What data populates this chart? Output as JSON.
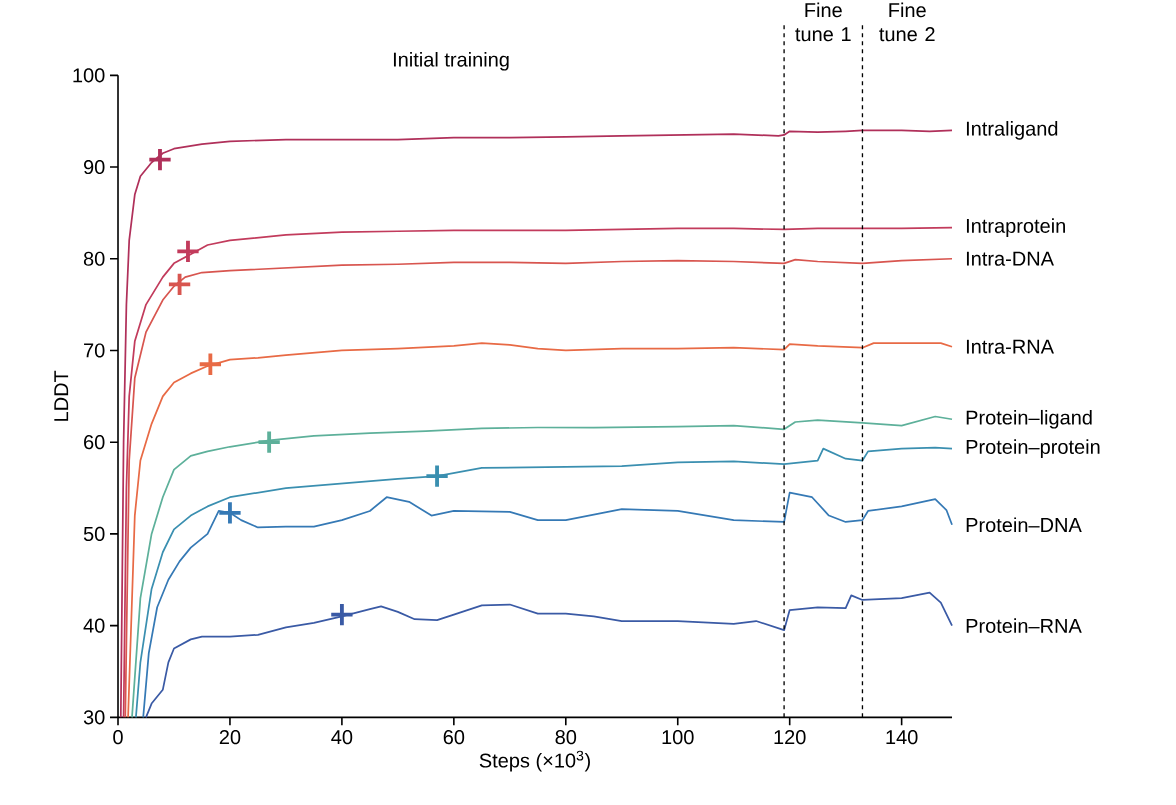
{
  "chart_data": {
    "type": "line",
    "xlabel": "Steps (×10$^{3}$)",
    "ylabel": "LDDT",
    "xlim": [
      0,
      149
    ],
    "ylim": [
      30,
      100
    ],
    "xticks": [
      0,
      20,
      40,
      60,
      80,
      100,
      120,
      140
    ],
    "yticks": [
      30,
      40,
      50,
      60,
      70,
      80,
      90,
      100
    ],
    "grid": false,
    "line_style": "solid",
    "marker": "none",
    "ref_lines": [
      {
        "axis": "x",
        "value": 119,
        "color": "#000000",
        "line_style": "dashed"
      },
      {
        "axis": "x",
        "value": 133,
        "color": "#000000",
        "line_style": "dashed"
      }
    ],
    "annotations": [
      "Initial training",
      "Fine tune 1",
      "Fine tune 2"
    ],
    "series": [
      {
        "name": "Intraligand",
        "color": "#b0305a",
        "x": [
          0.5,
          1,
          1.5,
          2,
          3,
          4,
          6,
          8,
          10,
          15,
          20,
          30,
          40,
          50,
          60,
          70,
          80,
          90,
          100,
          110,
          118,
          119,
          120,
          125,
          130,
          133,
          140,
          145,
          149
        ],
        "values": [
          30,
          60,
          75,
          82,
          87,
          89,
          90.5,
          91.5,
          92,
          92.5,
          92.8,
          93,
          93,
          93,
          93.2,
          93.2,
          93.3,
          93.4,
          93.5,
          93.6,
          93.4,
          93.5,
          93.9,
          93.8,
          93.9,
          94,
          94,
          93.9,
          94
        ]
      },
      {
        "name": "Intraprotein",
        "color": "#c23b5c",
        "x": [
          1,
          1.5,
          2,
          3,
          5,
          8,
          10,
          13,
          16,
          20,
          30,
          40,
          50,
          60,
          70,
          80,
          90,
          100,
          110,
          119,
          125,
          133,
          140,
          149
        ],
        "values": [
          30,
          55,
          65,
          71,
          75,
          78,
          79.5,
          80.5,
          81.5,
          82,
          82.6,
          82.9,
          83,
          83.1,
          83.1,
          83.1,
          83.2,
          83.3,
          83.3,
          83.2,
          83.3,
          83.3,
          83.3,
          83.4
        ]
      },
      {
        "name": "Intra-DNA",
        "color": "#d8554f",
        "x": [
          1.3,
          2,
          3,
          5,
          8,
          10,
          12,
          15,
          20,
          30,
          40,
          50,
          60,
          70,
          80,
          90,
          100,
          110,
          119,
          121,
          125,
          133,
          140,
          149
        ],
        "values": [
          30,
          58,
          67,
          72,
          75.5,
          77,
          78,
          78.5,
          78.7,
          79,
          79.3,
          79.4,
          79.6,
          79.6,
          79.5,
          79.7,
          79.8,
          79.7,
          79.5,
          79.9,
          79.7,
          79.5,
          79.8,
          80
        ]
      },
      {
        "name": "Intra-RNA",
        "color": "#e86a45",
        "x": [
          1.8,
          3,
          4,
          6,
          8,
          10,
          13,
          16,
          20,
          25,
          30,
          40,
          50,
          60,
          65,
          70,
          75,
          80,
          90,
          100,
          110,
          119,
          120,
          125,
          133,
          135,
          140,
          147,
          149
        ],
        "values": [
          30,
          52,
          58,
          62,
          65,
          66.5,
          67.5,
          68.3,
          69,
          69.2,
          69.5,
          70,
          70.2,
          70.5,
          70.8,
          70.6,
          70.2,
          70,
          70.2,
          70.2,
          70.3,
          70.1,
          70.7,
          70.5,
          70.3,
          70.8,
          70.8,
          70.8,
          70.4
        ]
      },
      {
        "name": "Protein–ligand",
        "color": "#5db09a",
        "x": [
          2.5,
          4,
          6,
          8,
          10,
          13,
          16,
          20,
          27,
          35,
          45,
          55,
          65,
          75,
          85,
          100,
          110,
          119,
          121,
          125,
          133,
          140,
          146,
          149
        ],
        "values": [
          30,
          43,
          50,
          54,
          57,
          58.5,
          59,
          59.5,
          60.2,
          60.7,
          61,
          61.2,
          61.5,
          61.6,
          61.6,
          61.7,
          61.8,
          61.4,
          62.2,
          62.4,
          62.1,
          61.8,
          62.8,
          62.5
        ]
      },
      {
        "name": "Protein–protein",
        "color": "#3a8fb0",
        "x": [
          3.2,
          4,
          6,
          8,
          10,
          13,
          16,
          20,
          30,
          40,
          50,
          57,
          65,
          80,
          90,
          100,
          110,
          119,
          125,
          126,
          130,
          133,
          134,
          140,
          146,
          149
        ],
        "values": [
          30,
          36,
          44,
          48,
          50.5,
          52,
          53,
          54,
          55,
          55.5,
          56,
          56.3,
          57.2,
          57.3,
          57.4,
          57.8,
          57.9,
          57.6,
          58,
          59.3,
          58.2,
          58,
          59,
          59.3,
          59.4,
          59.3
        ]
      },
      {
        "name": "Protein–DNA",
        "color": "#3579b5",
        "x": [
          4.5,
          5.5,
          7,
          9,
          11,
          13,
          16,
          18,
          20,
          22,
          25,
          30,
          35,
          40,
          45,
          48,
          52,
          56,
          60,
          70,
          75,
          80,
          90,
          100,
          110,
          119,
          120,
          124,
          127,
          130,
          133,
          134,
          140,
          146,
          148,
          149
        ],
        "values": [
          30,
          37,
          42,
          45,
          47,
          48.5,
          50,
          52.5,
          52.3,
          51.5,
          50.7,
          50.8,
          50.8,
          51.5,
          52.5,
          54,
          53.5,
          52,
          52.5,
          52.4,
          51.5,
          51.5,
          52.7,
          52.5,
          51.5,
          51.3,
          54.5,
          54,
          52,
          51.3,
          51.5,
          52.5,
          53,
          53.8,
          52.6,
          51
        ]
      },
      {
        "name": "Protein–RNA",
        "color": "#3a5aa5",
        "x": [
          5,
          6,
          8,
          9,
          10,
          13,
          15,
          20,
          25,
          30,
          35,
          40,
          45,
          47,
          50,
          53,
          57,
          60,
          65,
          70,
          75,
          80,
          85,
          90,
          100,
          110,
          114,
          119,
          120,
          125,
          130,
          131,
          133,
          140,
          145,
          147,
          149
        ],
        "values": [
          30,
          31.5,
          33,
          36,
          37.5,
          38.5,
          38.8,
          38.8,
          39,
          39.8,
          40.3,
          41,
          41.8,
          42.1,
          41.5,
          40.7,
          40.6,
          41.2,
          42.2,
          42.3,
          41.3,
          41.3,
          41,
          40.5,
          40.5,
          40.2,
          40.5,
          39.5,
          41.7,
          42,
          41.9,
          43.3,
          42.8,
          43,
          43.6,
          42.5,
          40
        ]
      },
      {
        "type": "scatter",
        "marker": "cross",
        "color": "#b0305a",
        "x": [
          7.5
        ],
        "values": [
          90.8
        ]
      },
      {
        "type": "scatter",
        "marker": "cross",
        "color": "#c23b5c",
        "x": [
          12.5
        ],
        "values": [
          80.8
        ]
      },
      {
        "type": "scatter",
        "marker": "cross",
        "color": "#d8554f",
        "x": [
          11
        ],
        "values": [
          77.2
        ]
      },
      {
        "type": "scatter",
        "marker": "cross",
        "color": "#e86a45",
        "x": [
          16.5
        ],
        "values": [
          68.5
        ]
      },
      {
        "type": "scatter",
        "marker": "cross",
        "color": "#5db09a",
        "x": [
          27
        ],
        "values": [
          60
        ]
      },
      {
        "type": "scatter",
        "marker": "cross",
        "color": "#3a8fb0",
        "x": [
          57
        ],
        "values": [
          56.3
        ]
      },
      {
        "type": "scatter",
        "marker": "cross",
        "color": "#3579b5",
        "x": [
          20
        ],
        "values": [
          52.3
        ]
      },
      {
        "type": "scatter",
        "marker": "cross",
        "color": "#3a5aa5",
        "x": [
          40
        ],
        "values": [
          41.2
        ]
      }
    ]
  }
}
